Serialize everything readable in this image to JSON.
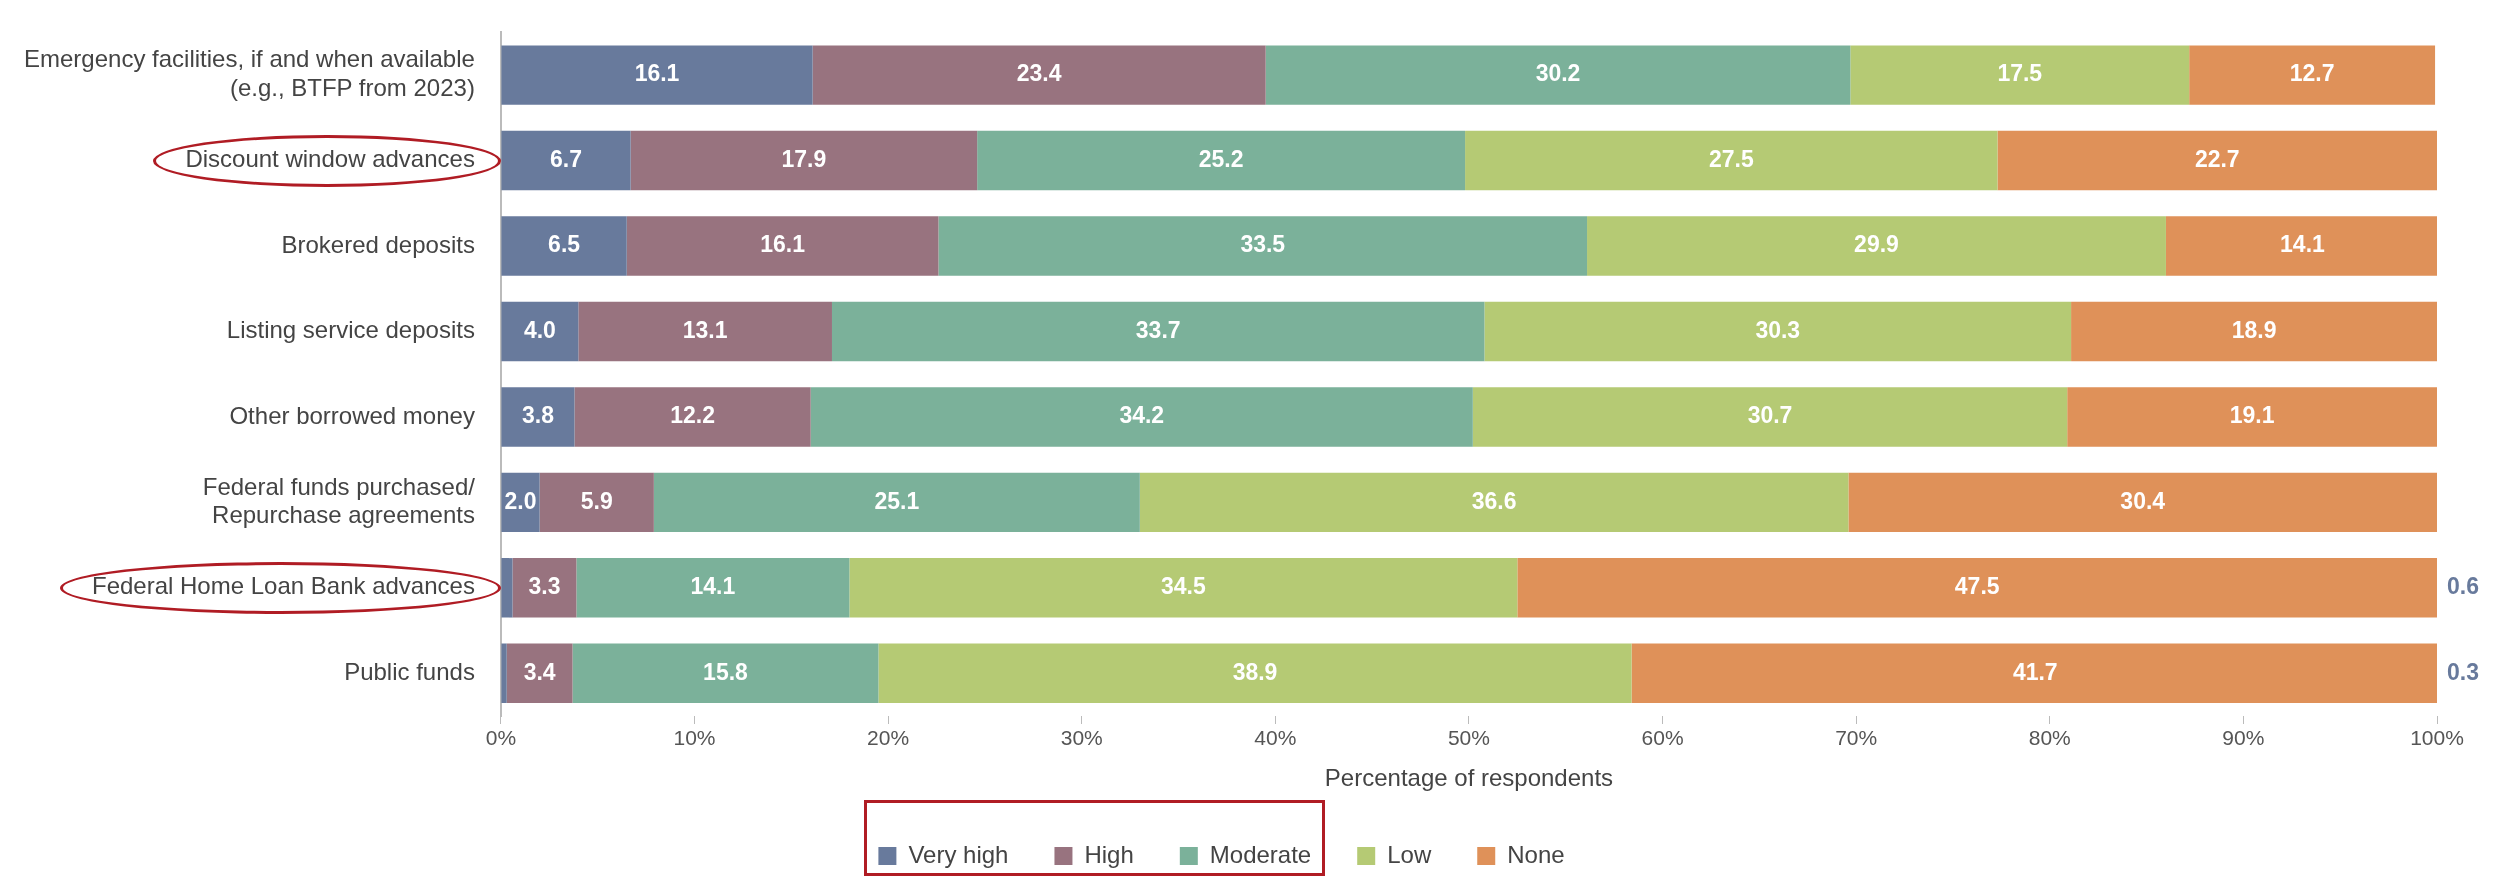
{
  "chart_data": {
    "type": "bar",
    "orientation": "horizontal",
    "stacked": true,
    "xlabel": "Percentage of respondents",
    "categories": [
      "Emergency facilities, if and when available\n(e.g., BTFP from 2023)",
      "Discount window advances",
      "Brokered deposits",
      "Listing service deposits",
      "Other borrowed money",
      "Federal funds purchased/\nRepurchase agreements",
      "Federal Home Loan Bank advances",
      "Public funds"
    ],
    "series": [
      {
        "name": "Very high",
        "color": "#687a9c",
        "values": [
          16.1,
          6.7,
          6.5,
          4.0,
          3.8,
          2.0,
          0.6,
          0.3
        ],
        "value_labels": [
          "16.1",
          "6.7",
          "6.5",
          "4.0",
          "3.8",
          "2.0",
          null,
          null
        ]
      },
      {
        "name": "High",
        "color": "#98737f",
        "values": [
          23.4,
          17.9,
          16.1,
          13.1,
          12.2,
          5.9,
          3.3,
          3.4
        ],
        "value_labels": [
          "23.4",
          "17.9",
          "16.1",
          "13.1",
          "12.2",
          "5.9",
          "3.3",
          "3.4"
        ]
      },
      {
        "name": "Moderate",
        "color": "#7bb19a",
        "values": [
          30.2,
          25.2,
          33.5,
          33.7,
          34.2,
          25.1,
          14.1,
          15.8
        ],
        "value_labels": [
          "30.2",
          "25.2",
          "33.5",
          "33.7",
          "34.2",
          "25.1",
          "14.1",
          "15.8"
        ]
      },
      {
        "name": "Low",
        "color": "#b5ca74",
        "values": [
          17.5,
          27.5,
          29.9,
          30.3,
          30.7,
          36.6,
          34.5,
          38.9
        ],
        "value_labels": [
          "17.5",
          "27.5",
          "29.9",
          "30.3",
          "30.7",
          "36.6",
          "34.5",
          "38.9"
        ]
      },
      {
        "name": "None",
        "color": "#df9159",
        "values": [
          12.7,
          22.7,
          14.1,
          18.9,
          19.1,
          30.4,
          47.5,
          41.7
        ],
        "value_labels": [
          "12.7",
          "22.7",
          "14.1",
          "18.9",
          "19.1",
          "30.4",
          "47.5",
          "41.7"
        ]
      }
    ],
    "annotations": [
      {
        "text": "0.6",
        "x": 100,
        "y": "Federal Home Loan Bank advances"
      },
      {
        "text": "0.3",
        "x": 100,
        "y": "Public funds"
      }
    ],
    "xlim": [
      0,
      100
    ],
    "xticks": [
      {
        "value": 0,
        "label": "0%"
      },
      {
        "value": 10,
        "label": "10%"
      },
      {
        "value": 20,
        "label": "20%"
      },
      {
        "value": 30,
        "label": "30%"
      },
      {
        "value": 40,
        "label": "40%"
      },
      {
        "value": 50,
        "label": "50%"
      },
      {
        "value": 60,
        "label": "60%"
      },
      {
        "value": 70,
        "label": "70%"
      },
      {
        "value": 80,
        "label": "80%"
      },
      {
        "value": 90,
        "label": "90%"
      },
      {
        "value": 100,
        "label": "100%"
      }
    ],
    "grid": false,
    "legend": "bottom"
  }
}
